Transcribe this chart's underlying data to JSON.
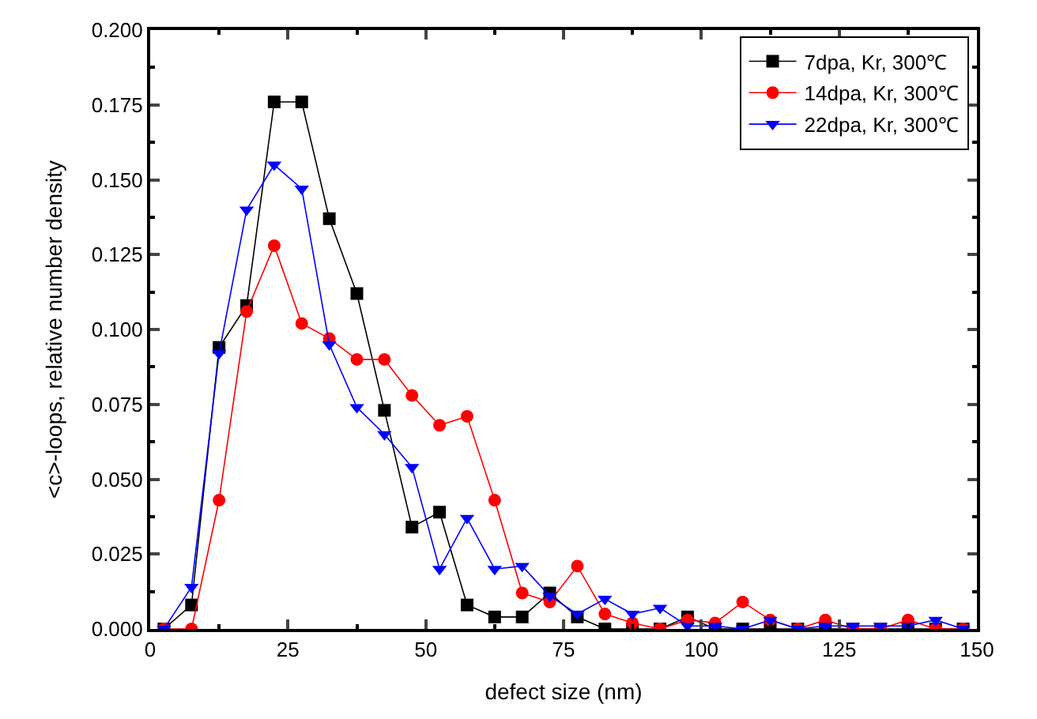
{
  "chart_data": {
    "type": "line",
    "xlabel": "defect size (nm)",
    "ylabel": "<c>-loops, relative number density",
    "x": [
      2.5,
      7.5,
      12.5,
      17.5,
      22.5,
      27.5,
      32.5,
      37.5,
      42.5,
      47.5,
      52.5,
      57.5,
      62.5,
      67.5,
      72.5,
      77.5,
      82.5,
      87.5,
      92.5,
      97.5,
      102.5,
      107.5,
      112.5,
      117.5,
      122.5,
      127.5,
      132.5,
      137.5,
      142.5,
      147.5
    ],
    "series": [
      {
        "name": "7dpa, Kr, 300℃",
        "color": "#000000",
        "marker": "square",
        "values": [
          0,
          0.008,
          0.094,
          0.108,
          0.176,
          0.176,
          0.137,
          0.112,
          0.073,
          0.034,
          0.039,
          0.008,
          0.004,
          0.004,
          0.012,
          0.004,
          0,
          0,
          0,
          0.004,
          0,
          0,
          0,
          0,
          0,
          0,
          0,
          0,
          0,
          0
        ]
      },
      {
        "name": "14dpa, Kr, 300℃",
        "color": "#ff0000",
        "marker": "circle",
        "values": [
          0,
          0,
          0.043,
          0.106,
          0.128,
          0.102,
          0.097,
          0.09,
          0.09,
          0.078,
          0.068,
          0.071,
          0.043,
          0.012,
          0.009,
          0.021,
          0.005,
          0.002,
          0,
          0.003,
          0.002,
          0.009,
          0.003,
          0,
          0.003,
          0,
          0,
          0.003,
          0,
          0
        ]
      },
      {
        "name": "22dpa, Kr, 300℃",
        "color": "#0000ff",
        "marker": "triangle",
        "values": [
          0,
          0.014,
          0.092,
          0.14,
          0.155,
          0.147,
          0.095,
          0.074,
          0.065,
          0.054,
          0.02,
          0.037,
          0.02,
          0.021,
          0.011,
          0.005,
          0.01,
          0.005,
          0.007,
          0.001,
          0.001,
          0,
          0.003,
          0,
          0.001,
          0.001,
          0.001,
          0.001,
          0.003,
          0
        ]
      }
    ],
    "xlim": [
      0,
      150
    ],
    "xticks": [
      0,
      25,
      50,
      75,
      100,
      125,
      150
    ],
    "ylim": [
      0,
      0.2
    ],
    "yticks": [
      {
        "value": 0,
        "label": "0.000"
      },
      {
        "value": 0.025,
        "label": "0.025"
      },
      {
        "value": 0.05,
        "label": "0.050"
      },
      {
        "value": 0.075,
        "label": "0.075"
      },
      {
        "value": 0.1,
        "label": "0.100"
      },
      {
        "value": 0.125,
        "label": "0.125"
      },
      {
        "value": 0.15,
        "label": "0.150"
      },
      {
        "value": 0.175,
        "label": "0.175"
      },
      {
        "value": 0.2,
        "label": "0.200"
      }
    ],
    "legend": "top right",
    "line_style": "solid"
  }
}
